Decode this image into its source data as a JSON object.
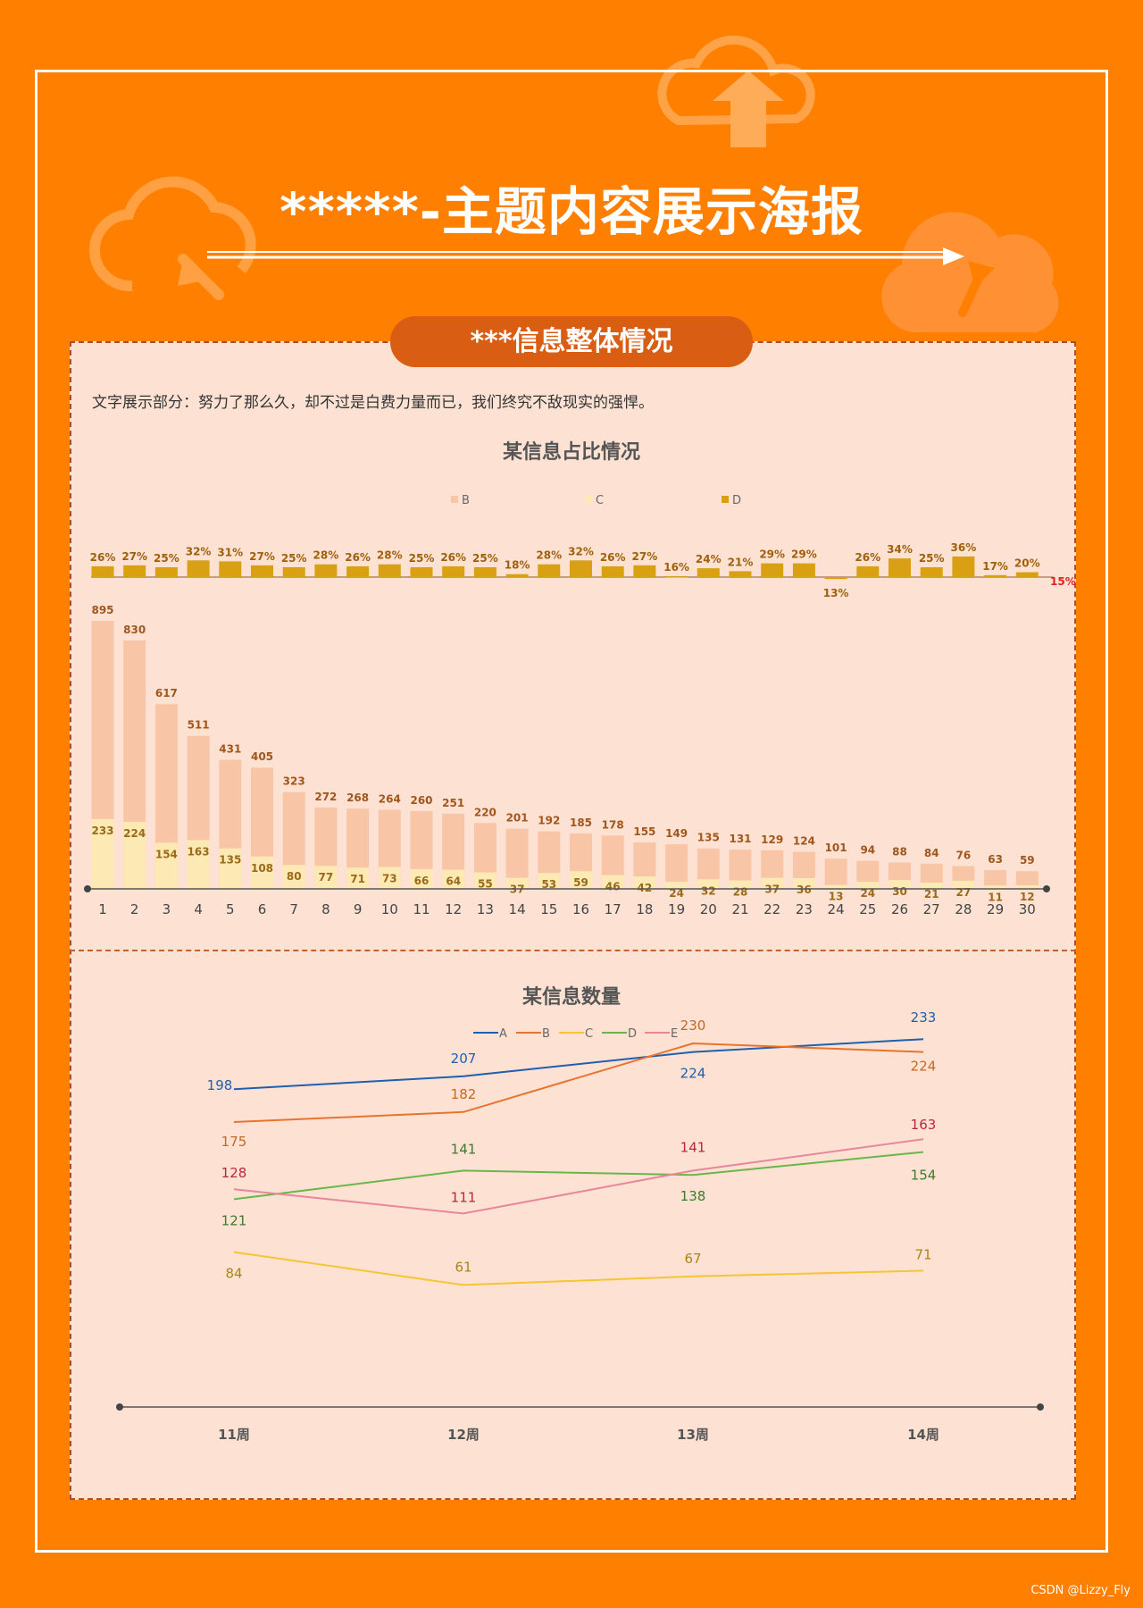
{
  "poster": {
    "title": "*****-主题内容展示海报",
    "section_label": "***信息整体情况",
    "intro_text": "文字展示部分：努力了那么久，却不过是白费力量而已，我们终究不敌现实的强悍。",
    "watermark": "CSDN @Lizzy_Fly"
  },
  "colors": {
    "background": "#ff7f00",
    "panel": "#fde2d4",
    "tab": "#d95e14",
    "bar_B": "#f8c6a6",
    "bar_C": "#fde9b4",
    "bar_D": "#d9a013"
  },
  "chart_data": [
    {
      "type": "bar",
      "title": "某信息占比情况",
      "legend": [
        "B",
        "C",
        "D"
      ],
      "legend_position": "top",
      "categories": [
        "1",
        "2",
        "3",
        "4",
        "5",
        "6",
        "7",
        "8",
        "9",
        "10",
        "11",
        "12",
        "13",
        "14",
        "15",
        "16",
        "17",
        "18",
        "19",
        "20",
        "21",
        "22",
        "23",
        "24",
        "25",
        "26",
        "27",
        "28",
        "29",
        "30"
      ],
      "series": [
        {
          "name": "B",
          "values": [
            895,
            830,
            617,
            511,
            431,
            405,
            323,
            272,
            268,
            264,
            260,
            251,
            220,
            201,
            192,
            185,
            178,
            155,
            149,
            135,
            131,
            129,
            124,
            101,
            94,
            88,
            84,
            76,
            63,
            59
          ]
        },
        {
          "name": "C",
          "values": [
            233,
            224,
            154,
            163,
            135,
            108,
            80,
            77,
            71,
            73,
            66,
            64,
            55,
            37,
            53,
            59,
            46,
            42,
            24,
            32,
            28,
            37,
            36,
            13,
            24,
            30,
            21,
            27,
            11,
            12
          ]
        },
        {
          "name": "D",
          "values": [
            "26%",
            "27%",
            "25%",
            "32%",
            "31%",
            "27%",
            "25%",
            "28%",
            "26%",
            "28%",
            "25%",
            "26%",
            "25%",
            "18%",
            "28%",
            "32%",
            "26%",
            "27%",
            "16%",
            "24%",
            "21%",
            "29%",
            "29%",
            "13%",
            "26%",
            "34%",
            "25%",
            "36%",
            "17%",
            "20%"
          ]
        }
      ],
      "reference_label": "15%",
      "grid": false
    },
    {
      "type": "line",
      "title": "某信息数量",
      "legend": [
        "A",
        "B",
        "C",
        "D",
        "E"
      ],
      "legend_position": "top",
      "categories": [
        "11周",
        "12周",
        "13周",
        "14周"
      ],
      "series": [
        {
          "name": "A",
          "values": [
            198,
            207,
            224,
            233
          ],
          "color": "#1f5fad"
        },
        {
          "name": "B",
          "values": [
            175,
            182,
            230,
            224
          ],
          "color": "#e8732c"
        },
        {
          "name": "C",
          "values": [
            84,
            61,
            67,
            71
          ],
          "color": "#f7c531"
        },
        {
          "name": "D",
          "values": [
            121,
            141,
            138,
            154
          ],
          "color": "#6ab64a"
        },
        {
          "name": "E",
          "values": [
            128,
            111,
            141,
            163
          ],
          "color": "#e8869a"
        }
      ],
      "grid": false
    }
  ]
}
